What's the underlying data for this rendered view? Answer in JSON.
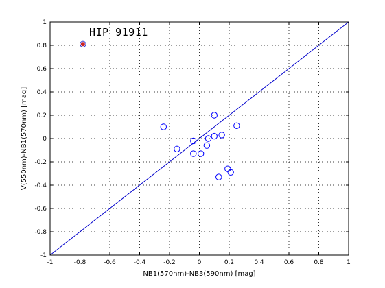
{
  "chart_data": {
    "type": "scatter",
    "title": "",
    "xlabel": "NB1(570nm)-NB3(590nm) [mag]",
    "ylabel": "V(550nm)-NB1(570nm) [mag]",
    "xlim": [
      -1,
      1
    ],
    "ylim": [
      -1,
      1
    ],
    "xticks": [
      "-1",
      "-0.8",
      "-0.6",
      "-0.4",
      "-0.2",
      "0",
      "0.2",
      "0.4",
      "0.6",
      "0.8",
      "1"
    ],
    "yticks": [
      "-1",
      "-0.8",
      "-0.6",
      "-0.4",
      "-0.2",
      "0",
      "0.2",
      "0.4",
      "0.6",
      "0.8",
      "1"
    ],
    "grid": true,
    "annotation": "HIP 91911",
    "series": [
      {
        "marker": "open-circle",
        "color": "#0000ff",
        "x": [
          -0.24,
          -0.15,
          -0.04,
          -0.04,
          0.01,
          0.05,
          0.06,
          0.1,
          0.1,
          0.13,
          0.15,
          0.19,
          0.21,
          0.25
        ],
        "y": [
          0.1,
          -0.09,
          -0.02,
          -0.13,
          -0.13,
          -0.06,
          0.0,
          0.2,
          0.02,
          -0.33,
          0.03,
          -0.26,
          -0.29,
          0.11
        ]
      },
      {
        "marker": "highlighted-point",
        "color": "#cc2222",
        "x": [
          -0.78
        ],
        "y": [
          0.81
        ]
      }
    ],
    "reference_line": {
      "color": "#0000cc",
      "x": [
        -1,
        1
      ],
      "y": [
        -1,
        1
      ]
    }
  }
}
